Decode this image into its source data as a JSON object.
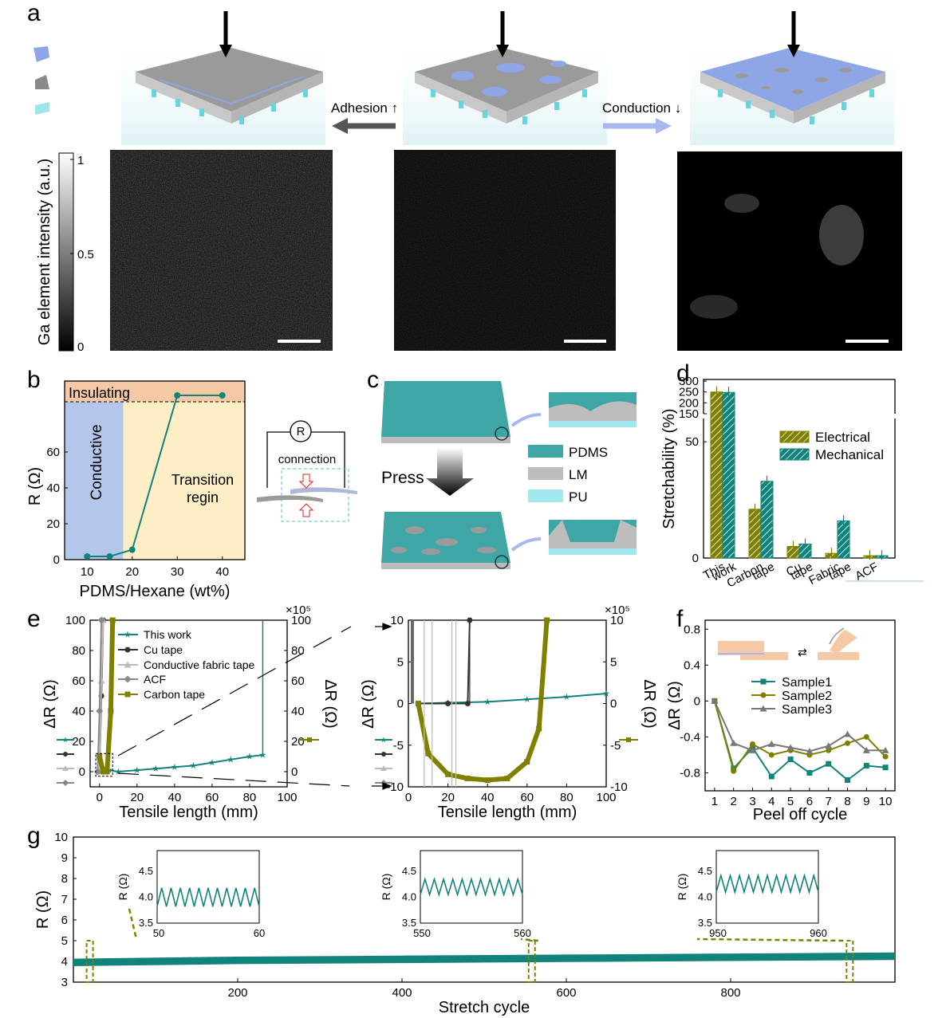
{
  "panels": {
    "a": "a",
    "b": "b",
    "c": "c",
    "d": "d",
    "e": "e",
    "f": "f",
    "g": "g"
  },
  "colors": {
    "teal": "#12837a",
    "olive": "#808000",
    "gray": "#9a9a9a",
    "dark": "#333333",
    "blue": "#8fa6e6",
    "orange": "#f6c9a6",
    "cyan": "#9ee6ee"
  },
  "panel_a": {
    "adhesion_label": "Adhesion ↑",
    "conduction_label": "Conduction ↓",
    "colorbar_title": "Ga element intensity (a.u.)",
    "colorbar_ticks": [
      "1",
      "0.5",
      "0"
    ]
  },
  "panel_c": {
    "press_label": "Press",
    "legend": [
      "PDMS",
      "LM",
      "PU"
    ]
  },
  "chart_data": [
    {
      "id": "b",
      "type": "line",
      "xlabel": "PDMS/Hexane (wt%)",
      "ylabel": "R (Ω)",
      "xlim": [
        5,
        45
      ],
      "ylim": [
        0,
        80
      ],
      "xticks": [
        "10",
        "20",
        "30",
        "40"
      ],
      "yticks": [
        "0",
        "20",
        "40",
        "60"
      ],
      "regions": [
        "Conductive",
        "Transition regin",
        "Insulating"
      ],
      "x": [
        10,
        15,
        20,
        30,
        40
      ],
      "y": [
        1.8,
        1.8,
        5.5,
        "insulating",
        "insulating"
      ],
      "inset_labels": [
        "R",
        "connection"
      ]
    },
    {
      "id": "d",
      "type": "bar",
      "ylabel": "Stretchability (%)",
      "categories": [
        "This work",
        "Carbon tape",
        "Cu tape",
        "Fabric tape",
        "ACF"
      ],
      "yticks": [
        "0",
        "50",
        "150",
        "200",
        "250",
        "300"
      ],
      "series": [
        {
          "name": "Electrical",
          "values": [
            250,
            21,
            5,
            2,
            1
          ]
        },
        {
          "name": "Mechanical",
          "values": [
            248,
            33,
            6,
            16,
            1
          ]
        }
      ]
    },
    {
      "id": "e-left",
      "type": "line",
      "xlabel": "Tensile length (mm)",
      "ylabel": "ΔR (Ω)",
      "ylabel_right": "ΔR (Ω)",
      "right_exponent": "×10⁵",
      "xlim": [
        -5,
        100
      ],
      "ylim": [
        -10,
        100
      ],
      "xticks": [
        "0",
        "20",
        "40",
        "60",
        "80",
        "100"
      ],
      "yticks": [
        "0",
        "20",
        "40",
        "60",
        "80",
        "100"
      ],
      "yticks_right": [
        "0",
        "20",
        "40",
        "60",
        "80",
        "100"
      ],
      "series": [
        {
          "name": "This work",
          "x": [
            5,
            10,
            20,
            30,
            40,
            50,
            60,
            70,
            80,
            87
          ],
          "y": [
            1,
            0,
            1,
            2,
            3,
            4,
            6,
            8,
            10,
            11
          ]
        },
        {
          "name": "Cu tape",
          "x": [
            0,
            1,
            2
          ],
          "y": [
            0,
            50,
            100
          ]
        },
        {
          "name": "Conductive fabric tape",
          "x": [
            0,
            1,
            2
          ],
          "y": [
            0,
            60,
            100
          ]
        },
        {
          "name": "ACF",
          "x": [
            -1,
            0,
            1
          ],
          "y": [
            0,
            40,
            100
          ]
        },
        {
          "name": "Carbon tape",
          "x": [
            0,
            2,
            4,
            6,
            7
          ],
          "y": [
            10,
            0,
            0,
            40,
            100
          ]
        }
      ]
    },
    {
      "id": "e-right",
      "type": "line",
      "xlabel": "Tensile length (mm)",
      "ylabel": "ΔR (Ω)",
      "ylabel_right": "ΔR (Ω)",
      "right_exponent": "×10⁵",
      "xlim": [
        0,
        100
      ],
      "ylim": [
        -10,
        10
      ],
      "xticks": [
        "0",
        "20",
        "40",
        "60",
        "80",
        "100"
      ],
      "yticks": [
        "-10",
        "-5",
        "0",
        "5",
        "10"
      ],
      "yticks_right": [
        "-10",
        "-5",
        "0",
        "5",
        "10"
      ],
      "series": [
        {
          "name": "This work",
          "x": [
            5,
            20,
            40,
            60,
            80,
            100
          ],
          "y": [
            0,
            0.1,
            0.2,
            0.5,
            0.8,
            1.2
          ]
        },
        {
          "name": "Cu tape",
          "x": [
            5,
            20,
            30,
            31
          ],
          "y": [
            0,
            0,
            0,
            10
          ]
        },
        {
          "name": "Carbon tape",
          "x": [
            5,
            10,
            20,
            30,
            40,
            50,
            60,
            66,
            70
          ],
          "y": [
            0,
            -6,
            -8.5,
            -9,
            -9.2,
            -9,
            -7,
            -3,
            10
          ]
        }
      ]
    },
    {
      "id": "f",
      "type": "line",
      "xlabel": "Peel off cycle",
      "ylabel": "ΔR (Ω)",
      "xlim": [
        0.5,
        10.5
      ],
      "ylim": [
        -1.0,
        0.9
      ],
      "xticks": [
        "1",
        "2",
        "3",
        "4",
        "5",
        "6",
        "7",
        "8",
        "9",
        "10"
      ],
      "yticks": [
        "-0.8",
        "-0.4",
        "0",
        "0.4",
        "0.8"
      ],
      "x": [
        1,
        2,
        3,
        4,
        5,
        6,
        7,
        8,
        9,
        10
      ],
      "series": [
        {
          "name": "Sample1",
          "values": [
            0,
            -0.75,
            -0.52,
            -0.84,
            -0.65,
            -0.8,
            -0.7,
            -0.88,
            -0.72,
            -0.74
          ]
        },
        {
          "name": "Sample2",
          "values": [
            0,
            -0.78,
            -0.48,
            -0.6,
            -0.55,
            -0.6,
            -0.55,
            -0.47,
            -0.4,
            -0.62
          ]
        },
        {
          "name": "Sample3",
          "values": [
            0,
            -0.47,
            -0.55,
            -0.48,
            -0.52,
            -0.56,
            -0.5,
            -0.37,
            -0.55,
            -0.55
          ]
        }
      ]
    },
    {
      "id": "g",
      "type": "line",
      "xlabel": "Stretch cycle",
      "ylabel": "R (Ω)",
      "xlim": [
        0,
        1000
      ],
      "ylim": [
        3,
        10
      ],
      "xticks": [
        "200",
        "400",
        "600",
        "800"
      ],
      "yticks": [
        "3",
        "4",
        "5",
        "6",
        "7",
        "8",
        "9",
        "10"
      ],
      "x": [
        0,
        200,
        400,
        600,
        800,
        1000
      ],
      "y": [
        3.95,
        4.05,
        4.1,
        4.15,
        4.2,
        4.25
      ],
      "insets": [
        {
          "xticks": [
            "50",
            "60"
          ],
          "yticks": [
            "4.0",
            "4.5",
            "3.5"
          ],
          "ylabel": "R (Ω)",
          "low": 3.82,
          "high": 4.18
        },
        {
          "xticks": [
            "550",
            "560"
          ],
          "yticks": [
            "4.0",
            "4.5",
            "3.5"
          ],
          "ylabel": "R (Ω)",
          "low": 4.05,
          "high": 4.35
        },
        {
          "xticks": [
            "950",
            "960"
          ],
          "yticks": [
            "4.0",
            "4.5",
            "3.5"
          ],
          "ylabel": "R (Ω)",
          "low": 4.1,
          "high": 4.42
        }
      ]
    }
  ]
}
